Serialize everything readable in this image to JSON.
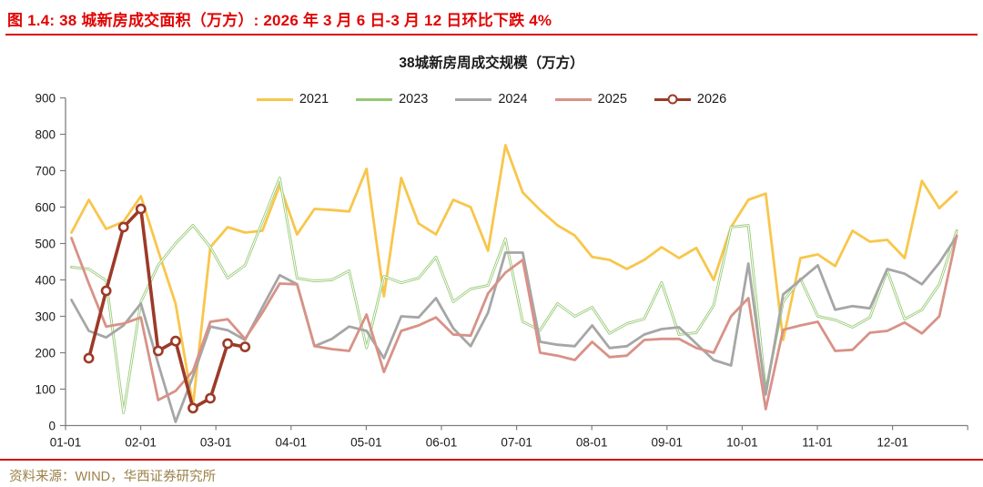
{
  "header": {
    "title": "图 1.4:  38 城新房成交面积（万方）:  2026 年 3 月 6 日-3 月 12 日环比下跌 4%"
  },
  "footer": {
    "source": "资料来源：WIND，华西证券研究所"
  },
  "chart_data": {
    "type": "line",
    "title": "38城新房周成交规模（万方）",
    "xlabel": "",
    "ylabel": "",
    "ylim": [
      0,
      900
    ],
    "y_ticks": [
      0,
      100,
      200,
      300,
      400,
      500,
      600,
      700,
      800,
      900
    ],
    "x_tick_labels": [
      "01-01",
      "02-01",
      "03-01",
      "04-01",
      "05-01",
      "06-01",
      "07-01",
      "08-01",
      "09-01",
      "10-01",
      "11-01",
      "12-01"
    ],
    "x_unit": "week-of-year",
    "weeks_total": 52,
    "grid": false,
    "legend_position": "top",
    "axis_color": "#7f7f7f",
    "series": [
      {
        "name": "2021",
        "color": "#f8c64b",
        "start_week": 0,
        "values": [
          530,
          620,
          540,
          560,
          630,
          480,
          335,
          55,
          490,
          545,
          530,
          535,
          660,
          525,
          595,
          592,
          588,
          705,
          355,
          680,
          555,
          525,
          620,
          600,
          480,
          770,
          640,
          592,
          550,
          522,
          463,
          455,
          430,
          455,
          490,
          460,
          488,
          400,
          545,
          620,
          637,
          235,
          460,
          470,
          438,
          535,
          505,
          510,
          460,
          672,
          597,
          642
        ]
      },
      {
        "name": "2023",
        "color": "#95c873",
        "style": "double",
        "start_week": 0,
        "values": [
          435,
          430,
          398,
          35,
          340,
          440,
          500,
          550,
          490,
          405,
          440,
          560,
          680,
          405,
          397,
          400,
          425,
          213,
          410,
          392,
          405,
          463,
          340,
          375,
          385,
          513,
          285,
          262,
          335,
          300,
          325,
          253,
          280,
          293,
          393,
          250,
          255,
          330,
          545,
          550,
          95,
          340,
          403,
          300,
          290,
          270,
          297,
          425,
          292,
          318,
          388,
          535
        ]
      },
      {
        "name": "2024",
        "color": "#a6a6a6",
        "start_week": 0,
        "values": [
          345,
          260,
          242,
          275,
          335,
          170,
          10,
          135,
          272,
          262,
          235,
          325,
          413,
          388,
          218,
          238,
          272,
          260,
          185,
          300,
          297,
          350,
          267,
          218,
          310,
          475,
          475,
          230,
          222,
          218,
          275,
          213,
          218,
          250,
          265,
          270,
          225,
          180,
          165,
          445,
          85,
          360,
          400,
          440,
          318,
          328,
          322,
          430,
          417,
          388,
          447,
          520
        ]
      },
      {
        "name": "2025",
        "color": "#d89287",
        "start_week": 0,
        "values": [
          515,
          390,
          272,
          280,
          297,
          70,
          95,
          150,
          285,
          292,
          238,
          310,
          390,
          388,
          218,
          210,
          205,
          305,
          147,
          260,
          275,
          297,
          250,
          247,
          363,
          420,
          455,
          200,
          192,
          180,
          230,
          188,
          192,
          235,
          238,
          238,
          213,
          200,
          300,
          350,
          45,
          263,
          275,
          285,
          205,
          208,
          255,
          260,
          283,
          253,
          300,
          522
        ]
      },
      {
        "name": "2026",
        "color": "#9c3a28",
        "marker": "circle",
        "line_width": 3.6,
        "start_week": 1,
        "values": [
          185,
          370,
          545,
          595,
          205,
          232,
          48,
          75,
          225,
          216
        ]
      }
    ]
  }
}
